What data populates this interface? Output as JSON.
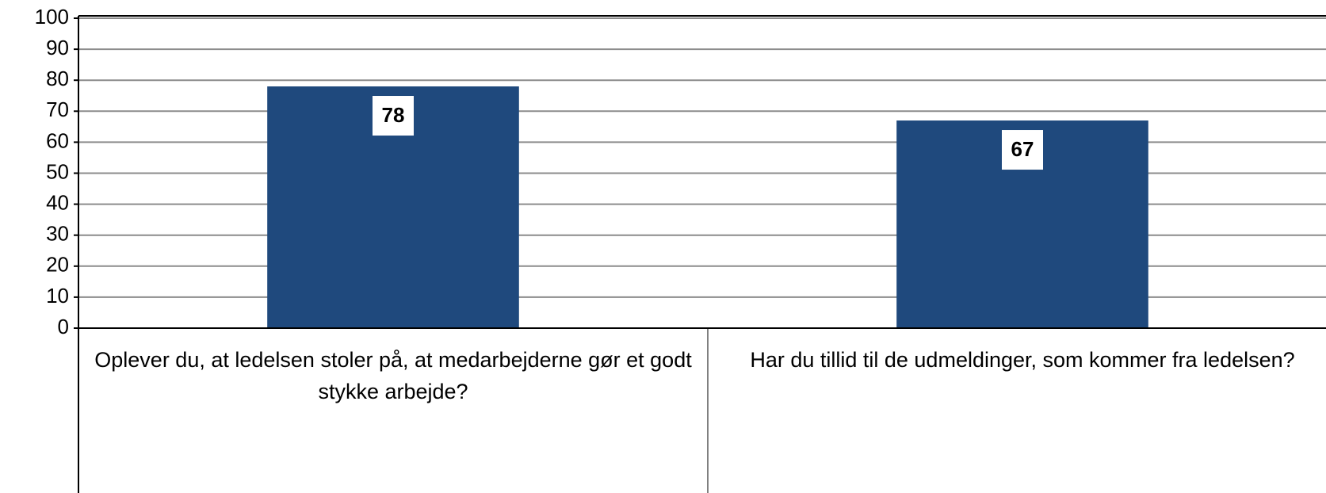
{
  "chart_data": {
    "type": "bar",
    "categories": [
      "Oplever du, at ledelsen stoler på, at medarbejderne gør et godt stykke arbejde?",
      "Har du tillid til de udmeldinger, som kommer fra ledelsen?"
    ],
    "values": [
      78,
      67
    ],
    "color": "#1f497d",
    "ylim": [
      0,
      100
    ],
    "yticks": [
      0,
      10,
      20,
      30,
      40,
      50,
      60,
      70,
      80,
      90,
      100
    ],
    "grid": true
  }
}
